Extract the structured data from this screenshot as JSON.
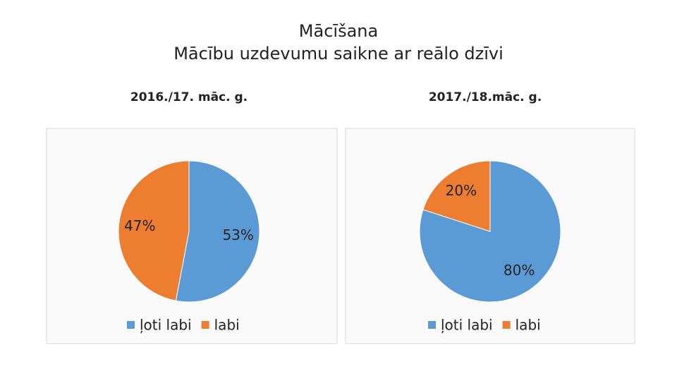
{
  "header": {
    "title": "Mācīšana",
    "subtitle": "Mācību uzdevumu saikne ar reālo dzīvi"
  },
  "chart_data": [
    {
      "type": "pie",
      "title": "2016./17. māc. g.",
      "categories": [
        "ļoti labi",
        "labi"
      ],
      "values": [
        53,
        47
      ],
      "value_labels": [
        "53%",
        "47%"
      ],
      "colors": [
        "#5b9bd5",
        "#ed7d31"
      ]
    },
    {
      "type": "pie",
      "title": "2017./18.māc. g.",
      "categories": [
        "ļoti labi",
        "labi"
      ],
      "values": [
        80,
        20
      ],
      "value_labels": [
        "80%",
        "20%"
      ],
      "colors": [
        "#5b9bd5",
        "#ed7d31"
      ]
    }
  ]
}
